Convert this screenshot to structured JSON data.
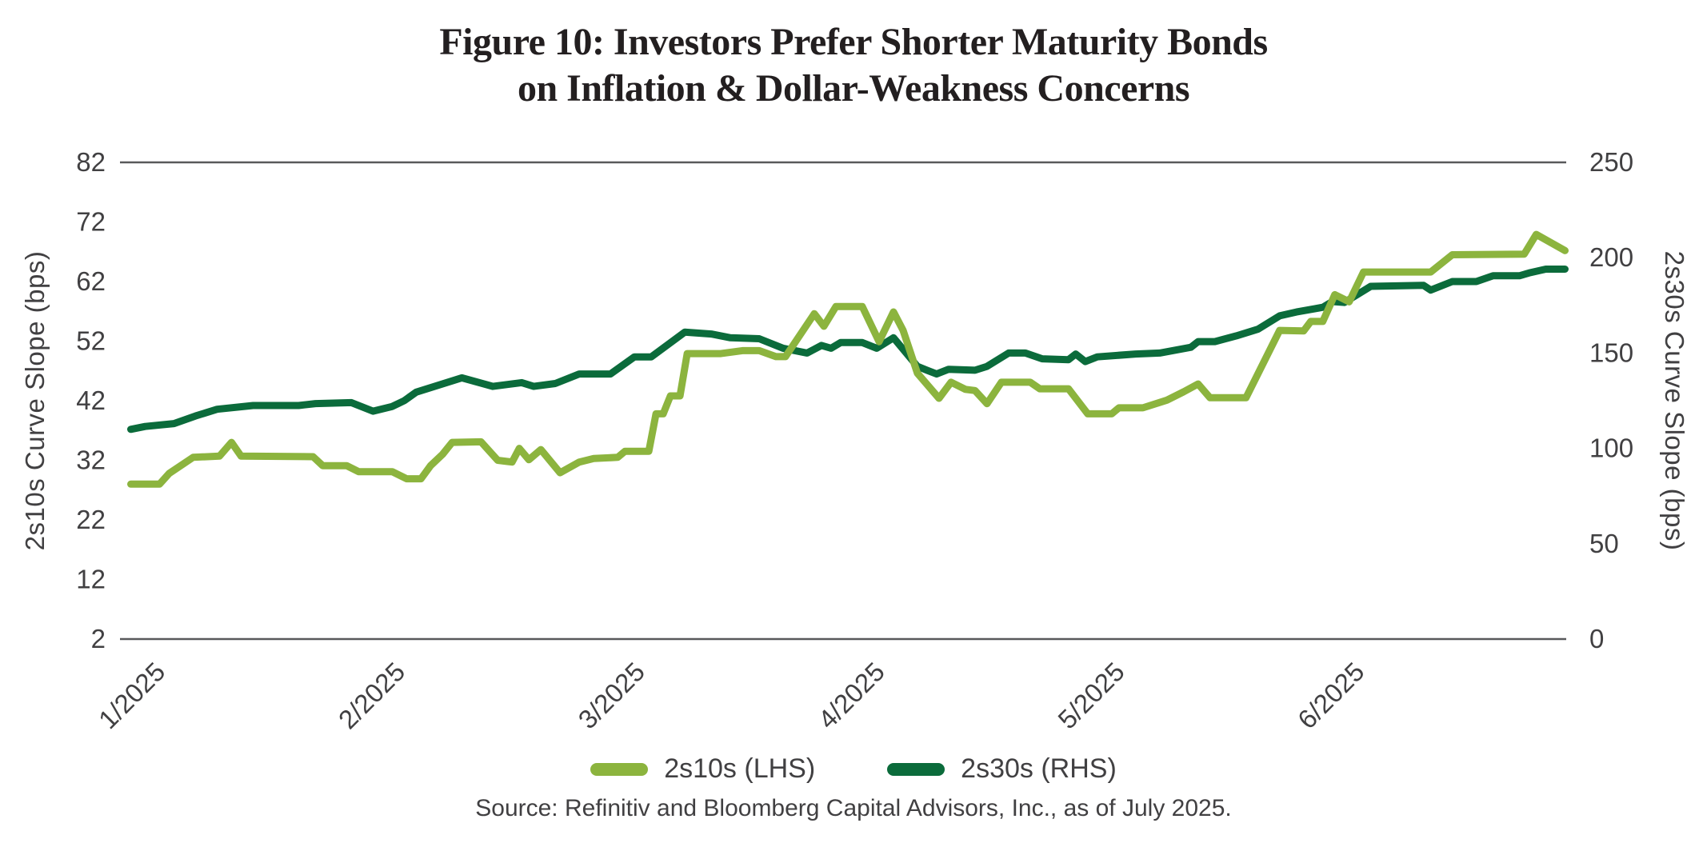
{
  "figure": {
    "title_line1": "Figure 10: Investors Prefer Shorter Maturity Bonds",
    "title_line2": "on Inflation & Dollar-Weakness Concerns",
    "source": "Source: Refinitiv and Bloomberg Capital Advisors, Inc., as of July 2025."
  },
  "legend": {
    "items": [
      {
        "label": "2s10s (LHS)",
        "color": "#8CB43E"
      },
      {
        "label": "2s30s (RHS)",
        "color": "#0B6B3B"
      }
    ]
  },
  "chart_data": {
    "type": "line",
    "title": "Figure 10: Investors Prefer Shorter Maturity Bonds on Inflation & Dollar-Weakness Concerns",
    "x_axis": {
      "unit": "month/year",
      "tick_labels": [
        "1/2025",
        "2/2025",
        "3/2025",
        "4/2025",
        "5/2025",
        "6/2025"
      ],
      "tick_values": [
        1,
        2,
        3,
        4,
        5,
        6
      ],
      "range": [
        0.955,
        6.985
      ],
      "label_rotation_deg": -45
    },
    "y_left": {
      "label": "2s10s Curve Slope (bps)",
      "ticks": [
        2,
        12,
        22,
        32,
        42,
        52,
        62,
        72,
        82
      ],
      "range": [
        2,
        82
      ]
    },
    "y_right": {
      "label": "2s30s Curve Slope (bps)",
      "ticks": [
        0,
        50,
        100,
        150,
        200,
        250
      ],
      "range": [
        0,
        250
      ]
    },
    "grid": "top and bottom horizontal border lines only",
    "axis_line_color": "#58595B",
    "series": [
      {
        "name": "2s30s (RHS)",
        "axis": "right",
        "color": "#0B6B3B",
        "points": [
          [
            1.0,
            110
          ],
          [
            1.06,
            111.5
          ],
          [
            1.18,
            113
          ],
          [
            1.27,
            117
          ],
          [
            1.36,
            120.5
          ],
          [
            1.51,
            122.5
          ],
          [
            1.7,
            122.5
          ],
          [
            1.77,
            123.5
          ],
          [
            1.92,
            124
          ],
          [
            2.01,
            119.5
          ],
          [
            2.09,
            122
          ],
          [
            2.14,
            125
          ],
          [
            2.19,
            129.5
          ],
          [
            2.38,
            137
          ],
          [
            2.51,
            132.5
          ],
          [
            2.63,
            134.5
          ],
          [
            2.68,
            132.5
          ],
          [
            2.77,
            134
          ],
          [
            2.87,
            139
          ],
          [
            3.0,
            139
          ],
          [
            3.1,
            148
          ],
          [
            3.17,
            148
          ],
          [
            3.31,
            161
          ],
          [
            3.42,
            160
          ],
          [
            3.5,
            158
          ],
          [
            3.62,
            157.5
          ],
          [
            3.72,
            152.5
          ],
          [
            3.82,
            150
          ],
          [
            3.88,
            154
          ],
          [
            3.92,
            152.5
          ],
          [
            3.96,
            155.5
          ],
          [
            4.05,
            155.5
          ],
          [
            4.11,
            152.5
          ],
          [
            4.18,
            158
          ],
          [
            4.28,
            143
          ],
          [
            4.32,
            141
          ],
          [
            4.36,
            139
          ],
          [
            4.41,
            141.5
          ],
          [
            4.52,
            141
          ],
          [
            4.57,
            143
          ],
          [
            4.66,
            150
          ],
          [
            4.73,
            150
          ],
          [
            4.8,
            147
          ],
          [
            4.91,
            146.5
          ],
          [
            4.94,
            149.5
          ],
          [
            4.98,
            145.5
          ],
          [
            5.03,
            148
          ],
          [
            5.19,
            149.5
          ],
          [
            5.29,
            150
          ],
          [
            5.42,
            153
          ],
          [
            5.45,
            156
          ],
          [
            5.52,
            156
          ],
          [
            5.61,
            159
          ],
          [
            5.7,
            162.5
          ],
          [
            5.79,
            169.5
          ],
          [
            5.86,
            171.5
          ],
          [
            5.97,
            174
          ],
          [
            6.01,
            177
          ],
          [
            6.06,
            176.5
          ],
          [
            6.17,
            185
          ],
          [
            6.39,
            185.5
          ],
          [
            6.42,
            183
          ],
          [
            6.51,
            187.5
          ],
          [
            6.61,
            187.5
          ],
          [
            6.68,
            190.5
          ],
          [
            6.79,
            190.5
          ],
          [
            6.83,
            192
          ],
          [
            6.9,
            194
          ],
          [
            6.98,
            194
          ]
        ]
      },
      {
        "name": "2s10s (LHS)",
        "axis": "left",
        "color": "#8CB43E",
        "points": [
          [
            1.0,
            28
          ],
          [
            1.12,
            28
          ],
          [
            1.16,
            29.8
          ],
          [
            1.26,
            32.5
          ],
          [
            1.37,
            32.7
          ],
          [
            1.42,
            35.0
          ],
          [
            1.46,
            32.7
          ],
          [
            1.76,
            32.6
          ],
          [
            1.8,
            31.1
          ],
          [
            1.9,
            31.1
          ],
          [
            1.95,
            30.1
          ],
          [
            2.09,
            30.1
          ],
          [
            2.15,
            28.9
          ],
          [
            2.21,
            28.9
          ],
          [
            2.25,
            31.1
          ],
          [
            2.3,
            33.0
          ],
          [
            2.34,
            35.0
          ],
          [
            2.46,
            35.1
          ],
          [
            2.53,
            32.0
          ],
          [
            2.59,
            31.7
          ],
          [
            2.62,
            34.0
          ],
          [
            2.66,
            32.1
          ],
          [
            2.71,
            33.8
          ],
          [
            2.79,
            29.9
          ],
          [
            2.87,
            31.7
          ],
          [
            2.93,
            32.3
          ],
          [
            3.03,
            32.5
          ],
          [
            3.06,
            33.5
          ],
          [
            3.16,
            33.5
          ],
          [
            3.19,
            39.8
          ],
          [
            3.22,
            39.8
          ],
          [
            3.25,
            42.8
          ],
          [
            3.29,
            42.8
          ],
          [
            3.32,
            49.9
          ],
          [
            3.46,
            49.9
          ],
          [
            3.55,
            50.4
          ],
          [
            3.62,
            50.4
          ],
          [
            3.69,
            49.4
          ],
          [
            3.73,
            49.4
          ],
          [
            3.85,
            56.6
          ],
          [
            3.89,
            54.5
          ],
          [
            3.94,
            57.8
          ],
          [
            4.05,
            57.8
          ],
          [
            4.12,
            51.9
          ],
          [
            4.18,
            56.9
          ],
          [
            4.22,
            53.8
          ],
          [
            4.28,
            46.6
          ],
          [
            4.37,
            42.4
          ],
          [
            4.42,
            45.1
          ],
          [
            4.48,
            43.9
          ],
          [
            4.52,
            43.7
          ],
          [
            4.57,
            41.5
          ],
          [
            4.63,
            45.1
          ],
          [
            4.75,
            45.1
          ],
          [
            4.79,
            44.0
          ],
          [
            4.91,
            44.0
          ],
          [
            4.99,
            39.8
          ],
          [
            5.09,
            39.8
          ],
          [
            5.12,
            40.8
          ],
          [
            5.22,
            40.8
          ],
          [
            5.32,
            42.1
          ],
          [
            5.39,
            43.5
          ],
          [
            5.45,
            44.8
          ],
          [
            5.5,
            42.5
          ],
          [
            5.65,
            42.5
          ],
          [
            5.79,
            53.8
          ],
          [
            5.89,
            53.7
          ],
          [
            5.92,
            55.3
          ],
          [
            5.97,
            55.3
          ],
          [
            6.02,
            59.8
          ],
          [
            6.08,
            58.6
          ],
          [
            6.14,
            63.6
          ],
          [
            6.42,
            63.6
          ],
          [
            6.51,
            66.5
          ],
          [
            6.81,
            66.6
          ],
          [
            6.86,
            69.9
          ],
          [
            6.98,
            67.2
          ]
        ]
      }
    ]
  }
}
